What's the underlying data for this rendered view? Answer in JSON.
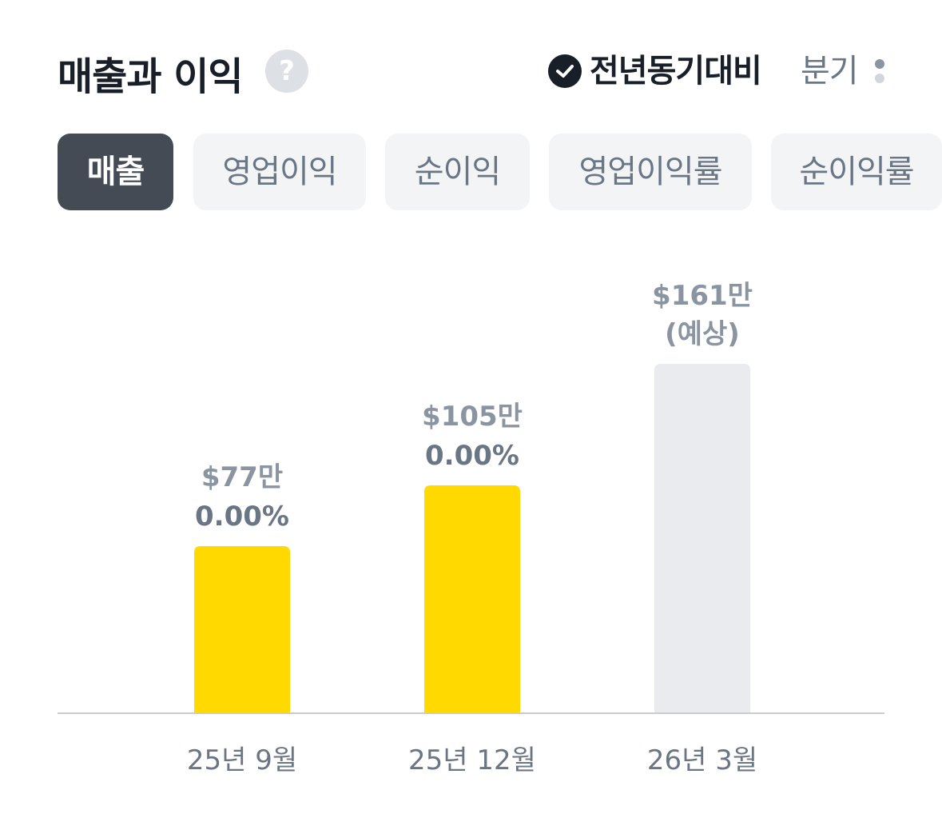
{
  "header": {
    "title": "매출과 이익",
    "help_icon": "question-circle-icon",
    "yoy_label": "전년동기대비",
    "yoy_checked": true,
    "check_icon": "check-circle-icon",
    "period_label": "분기",
    "more_icon": "vertical-dots-icon",
    "help_glyph": "?"
  },
  "tabs": [
    {
      "label": "매출",
      "active": true
    },
    {
      "label": "영업이익",
      "active": false
    },
    {
      "label": "순이익",
      "active": false
    },
    {
      "label": "영업이익률",
      "active": false
    },
    {
      "label": "순이익률",
      "active": false
    }
  ],
  "colors": {
    "actual_bar": "#FFD900",
    "estimate_bar": "#EAEBEF",
    "value_label": "#8B95A1",
    "percent_label": "#6B7684",
    "axis_label": "#6B7684",
    "baseline": "#C9CDD2",
    "active_tab_bg": "#454B54",
    "tab_bg": "#F2F4F6"
  },
  "chart_data": {
    "type": "bar",
    "categories": [
      "25년 9월",
      "25년 12월",
      "26년 3월"
    ],
    "values": [
      77,
      105,
      161
    ],
    "unit": "만 달러",
    "value_labels": [
      "$77만",
      "$105만",
      "$161만"
    ],
    "percent_labels": [
      "0.00%",
      "0.00%",
      ""
    ],
    "estimate_labels": [
      "",
      "",
      "(예상)"
    ],
    "estimated": [
      false,
      false,
      true
    ],
    "ylim": [
      0,
      161
    ],
    "grid": false,
    "legend": "none"
  }
}
